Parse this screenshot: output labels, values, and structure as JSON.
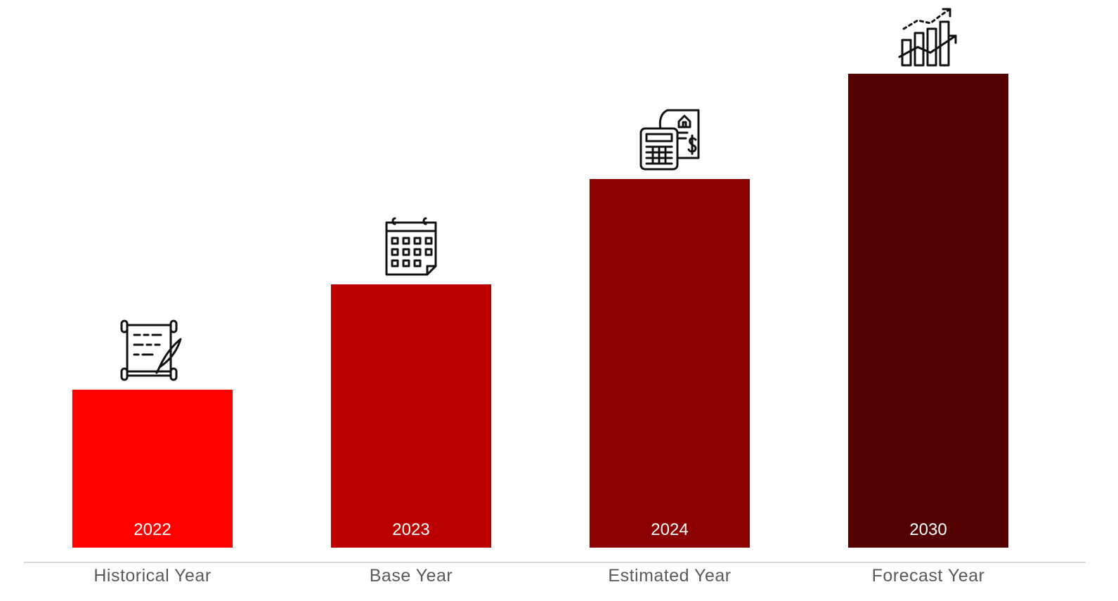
{
  "chart_data": {
    "type": "bar",
    "categories": [
      "Historical Year",
      "Base Year",
      "Estimated Year",
      "Forecast Year"
    ],
    "bar_labels": [
      "2022",
      "2023",
      "2024",
      "2030"
    ],
    "values": [
      1.5,
      2.5,
      3.5,
      4.5
    ],
    "ylim": [
      0,
      5
    ],
    "grid": false,
    "legend": "none",
    "colors": [
      "#ff0000",
      "#bb0000",
      "#8b0000",
      "#530000"
    ],
    "axis_line_color": "#d9d9d9",
    "icons": [
      "scroll-quill-icon",
      "calendar-icon",
      "calculator-invoice-icon",
      "growth-chart-icon"
    ]
  }
}
